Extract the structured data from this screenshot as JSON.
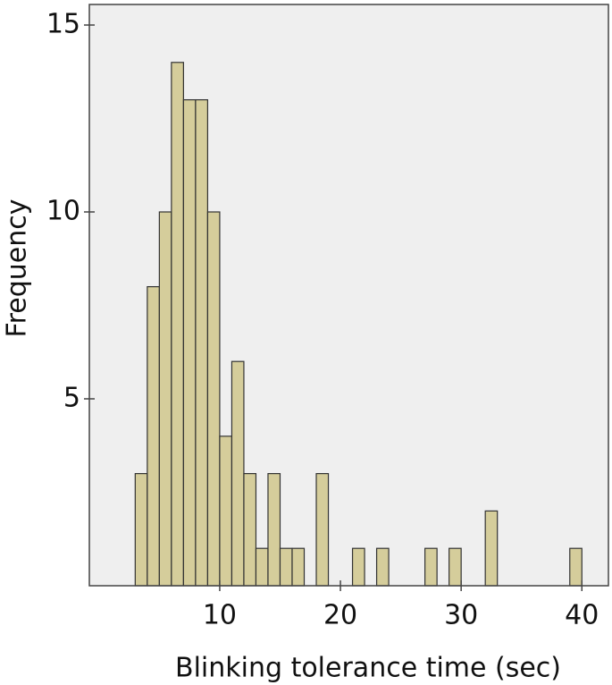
{
  "chart_data": {
    "type": "histogram",
    "xlabel": "Blinking tolerance time (sec)",
    "ylabel": "Frequency",
    "bins": [
      3,
      4,
      5,
      6,
      7,
      8,
      9,
      10,
      11,
      12,
      13,
      14,
      15,
      16,
      17,
      18,
      19,
      20,
      21,
      22,
      23,
      24,
      25,
      26,
      27,
      28,
      29,
      30,
      31,
      32,
      33,
      34,
      35,
      36,
      37,
      38,
      39,
      40
    ],
    "values": [
      3,
      8,
      10,
      14,
      13,
      13,
      10,
      4,
      6,
      3,
      1,
      3,
      1,
      1,
      0,
      3,
      0,
      0,
      1,
      0,
      1,
      0,
      0,
      0,
      1,
      0,
      1,
      0,
      0,
      2,
      0,
      0,
      0,
      0,
      0,
      0,
      1
    ],
    "color": "#d5cd9b",
    "xlim": [
      -0.8,
      42.2
    ],
    "xticks": [
      10,
      20,
      30,
      40
    ],
    "ylim": [
      0,
      15.55
    ],
    "yticks": [
      5,
      10,
      15
    ],
    "grid": false
  }
}
